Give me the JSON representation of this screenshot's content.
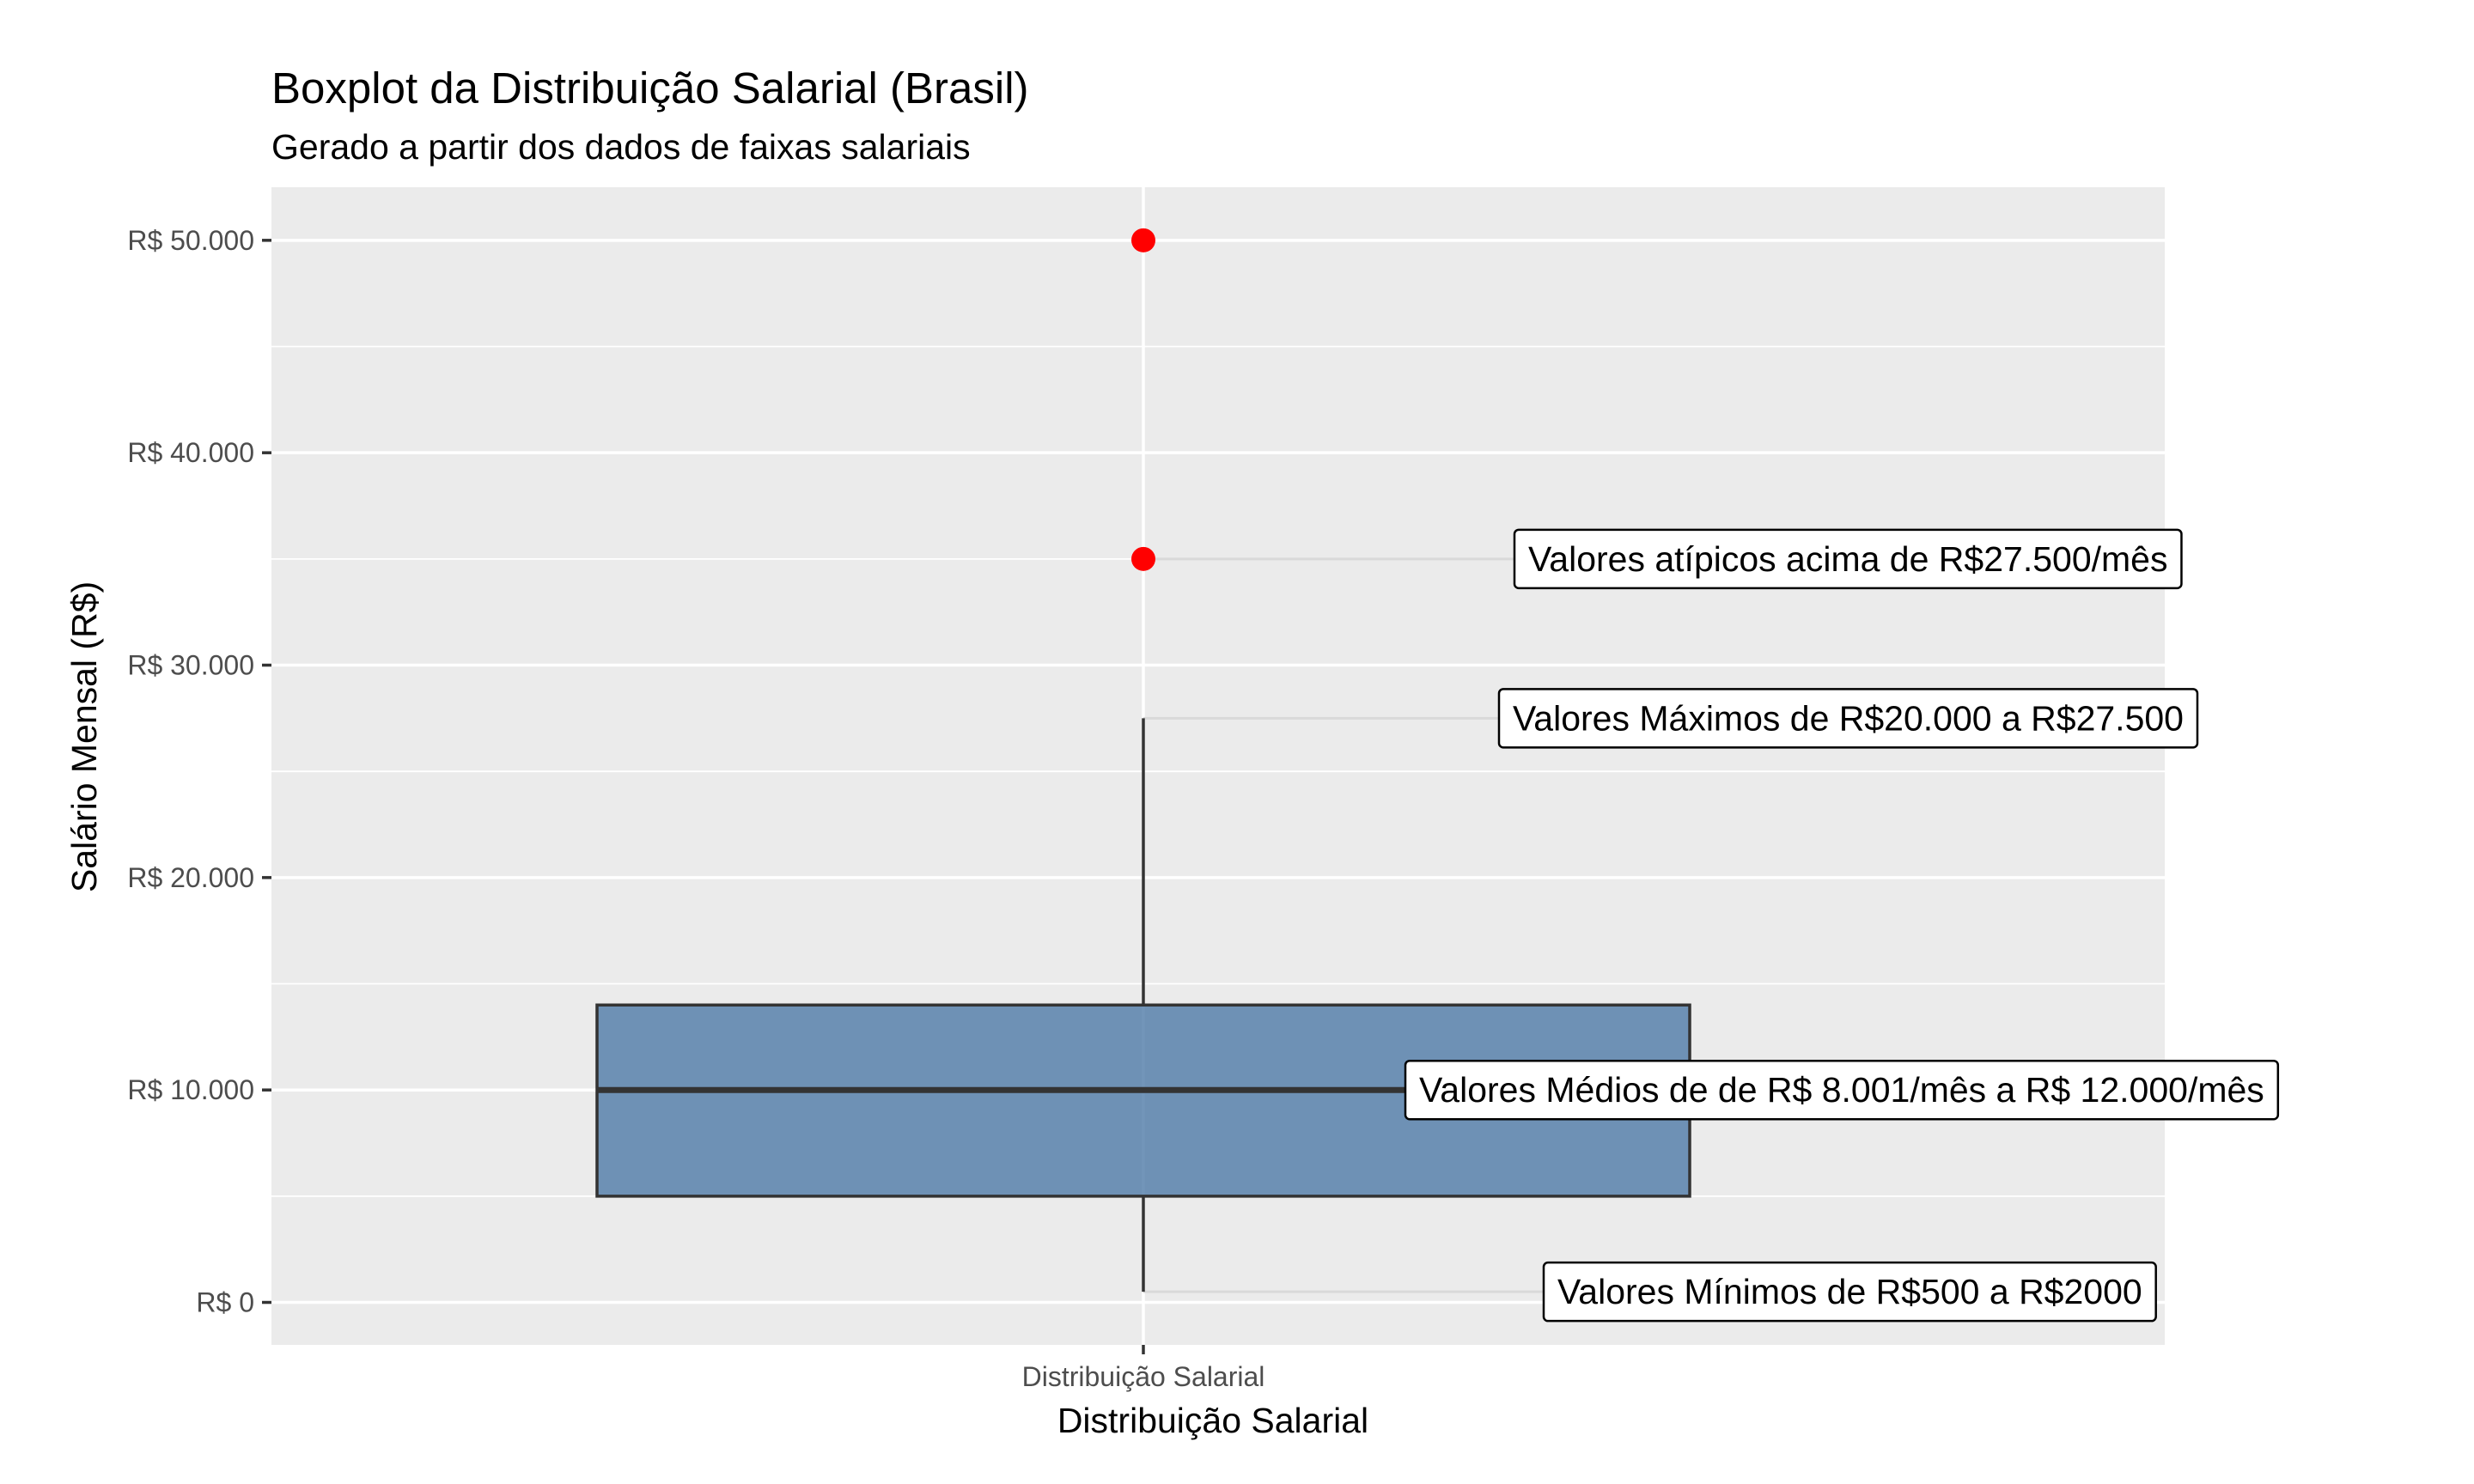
{
  "chart_data": {
    "type": "boxplot",
    "title": "Boxplot da Distribuição Salarial (Brasil)",
    "subtitle": "Gerado a partir dos dados de faixas salariais",
    "xlabel": "Distribuição Salarial",
    "ylabel": "Salário Mensal (R$)",
    "categories": [
      "Distribuição Salarial"
    ],
    "ylim": [
      -2000,
      52500
    ],
    "y_ticks": [
      0,
      10000,
      20000,
      30000,
      40000,
      50000
    ],
    "y_tick_labels": [
      "R$ 0",
      "R$ 10.000",
      "R$ 20.000",
      "R$ 30.000",
      "R$ 40.000",
      "R$ 50.000"
    ],
    "grid": true,
    "box": {
      "whisker_low": 500,
      "q1": 5000,
      "median": 10000,
      "q3": 14000,
      "whisker_high": 27500
    },
    "outliers": [
      35000,
      50000
    ],
    "box_fill": "#4f7aa8",
    "outlier_color": "#ff0000",
    "panel_background": "#ebebeb",
    "annotations": [
      {
        "text": "Valores atípicos acima de R$27.500/mês",
        "y": 35000
      },
      {
        "text": "Valores Máximos de R$20.000 a R$27.500",
        "y": 27500
      },
      {
        "text": "Valores Médios de de R$ 8.001/mês a R$ 12.000/mês",
        "y": 10000
      },
      {
        "text": "Valores Mínimos de R$500 a R$2000",
        "y": 500
      }
    ]
  }
}
